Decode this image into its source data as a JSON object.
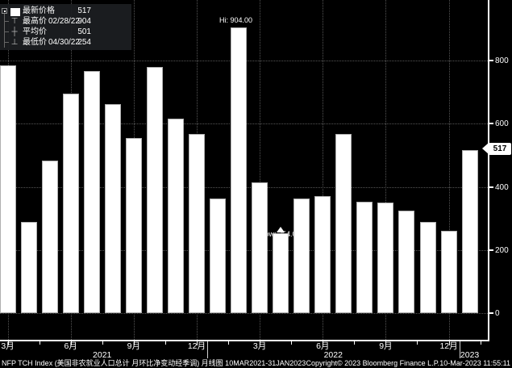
{
  "legend": {
    "rows": [
      {
        "icon_glyph": "",
        "label": "最新价格",
        "date": "",
        "value": "517"
      },
      {
        "icon_glyph": "⊤",
        "label": "最高价",
        "date": "02/28/22",
        "value": "904"
      },
      {
        "icon_glyph": "┼",
        "label": "平均价",
        "date": "",
        "value": "501"
      },
      {
        "icon_glyph": "⊥",
        "label": "最低价",
        "date": "04/30/22",
        "value": "254"
      }
    ]
  },
  "annotations": {
    "high": "Hi: 904.00",
    "low": "Low: 254.00"
  },
  "y_axis": {
    "last_price": "517"
  },
  "x_axis": {
    "quarter_ticks": [
      {
        "label": "3月",
        "month": 0
      },
      {
        "label": "6月",
        "month": 3
      },
      {
        "label": "9月",
        "month": 6
      },
      {
        "label": "12月",
        "month": 9
      },
      {
        "label": "3月",
        "month": 12
      },
      {
        "label": "6月",
        "month": 15
      },
      {
        "label": "9月",
        "month": 18
      },
      {
        "label": "12月",
        "month": 21
      }
    ],
    "years": [
      {
        "label": "2021",
        "first_month_index": 0,
        "last_month_index": 9
      },
      {
        "label": "2022",
        "first_month_index": 10,
        "last_month_index": 21
      },
      {
        "label": "2023",
        "first_month_index": 22,
        "last_month_index": 22
      }
    ]
  },
  "footer": {
    "left": "NFP TCH Index (美国非农就业人口总计 月环比净变动经季调)  月线图 10MAR2021-31JAN2023",
    "center": "Copyright© 2023 Bloomberg Finance L.P.",
    "right": "10-Mar-2023 11:55:11"
  },
  "chart_data": {
    "type": "bar",
    "title": "NFP TCH Index (美国非农就业人口总计 月环比净变动经季调) 月线图",
    "period": "10MAR2021-31JAN2023",
    "categories": [
      "2021-03",
      "2021-04",
      "2021-05",
      "2021-06",
      "2021-07",
      "2021-08",
      "2021-09",
      "2021-10",
      "2021-11",
      "2021-12",
      "2022-01",
      "2022-02",
      "2022-03",
      "2022-04",
      "2022-05",
      "2022-06",
      "2022-07",
      "2022-08",
      "2022-09",
      "2022-10",
      "2022-11",
      "2022-12",
      "2023-01"
    ],
    "values": [
      785,
      290,
      483,
      695,
      768,
      663,
      555,
      780,
      615,
      567,
      364,
      904,
      414,
      254,
      364,
      370,
      568,
      352,
      350,
      324,
      290,
      260,
      517
    ],
    "yticks": [
      800,
      600,
      400,
      200,
      0
    ],
    "ylim": [
      -85,
      992
    ],
    "xlabel": "",
    "ylabel": "",
    "bar_color": "#ffffff",
    "background": "#000000",
    "grid": "dotted",
    "legend_position": "top-left",
    "stats": {
      "last": 517,
      "high": 904,
      "high_date": "02/28/22",
      "average": 501,
      "low": 254,
      "low_date": "04/30/22"
    },
    "high_index": 11,
    "low_index": 13
  }
}
